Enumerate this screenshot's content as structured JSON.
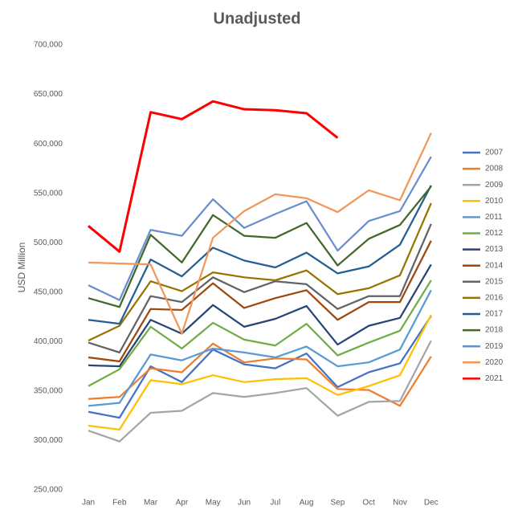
{
  "chart_data": {
    "type": "line",
    "title": "Unadjusted",
    "y_label": "USD Million",
    "categories": [
      "Jan",
      "Feb",
      "Mar",
      "Apr",
      "May",
      "Jun",
      "Jul",
      "Aug",
      "Sep",
      "Oct",
      "Nov",
      "Dec"
    ],
    "ylim": [
      250000,
      700000
    ],
    "yticks": [
      {
        "value": 250000,
        "label": "250,000"
      },
      {
        "value": 300000,
        "label": "300,000"
      },
      {
        "value": 350000,
        "label": "350,000"
      },
      {
        "value": 400000,
        "label": "400,000"
      },
      {
        "value": 450000,
        "label": "450,000"
      },
      {
        "value": 500000,
        "label": "500,000"
      },
      {
        "value": 550000,
        "label": "550,000"
      },
      {
        "value": 600000,
        "label": "600,000"
      },
      {
        "value": 650000,
        "label": "650,000"
      },
      {
        "value": 700000,
        "label": "700,000"
      }
    ],
    "grid": false,
    "legend": "right",
    "series": [
      {
        "name": "2007",
        "color": "#4472c4",
        "values": [
          329000,
          323000,
          375000,
          359000,
          392000,
          377000,
          373000,
          388000,
          354000,
          369000,
          378000,
          426000
        ]
      },
      {
        "name": "2008",
        "color": "#ed7d31",
        "values": [
          342000,
          344000,
          373000,
          369000,
          398000,
          379000,
          383000,
          382000,
          352000,
          351000,
          335000,
          385000
        ]
      },
      {
        "name": "2009",
        "color": "#a5a5a5",
        "values": [
          310000,
          299000,
          328000,
          330000,
          348000,
          344000,
          348000,
          353000,
          325000,
          339000,
          340000,
          401000
        ]
      },
      {
        "name": "2010",
        "color": "#ffc000",
        "values": [
          315000,
          311000,
          361000,
          357000,
          366000,
          359000,
          362000,
          363000,
          346000,
          355000,
          366000,
          427000
        ]
      },
      {
        "name": "2011",
        "color": "#5b9bd5",
        "values": [
          335000,
          338000,
          387000,
          381000,
          393000,
          389000,
          384000,
          395000,
          375000,
          379000,
          392000,
          452000
        ]
      },
      {
        "name": "2012",
        "color": "#70ad47",
        "values": [
          355000,
          372000,
          415000,
          393000,
          419000,
          402000,
          396000,
          418000,
          386000,
          399000,
          411000,
          462000
        ]
      },
      {
        "name": "2013",
        "color": "#264478",
        "values": [
          376000,
          375000,
          422000,
          408000,
          437000,
          415000,
          423000,
          436000,
          397000,
          416000,
          424000,
          478000
        ]
      },
      {
        "name": "2014",
        "color": "#9e480e",
        "values": [
          384000,
          380000,
          433000,
          432000,
          459000,
          434000,
          444000,
          452000,
          422000,
          440000,
          440000,
          502000
        ]
      },
      {
        "name": "2015",
        "color": "#636363",
        "values": [
          399000,
          389000,
          446000,
          440000,
          465000,
          450000,
          461000,
          458000,
          433000,
          446000,
          446000,
          519000
        ]
      },
      {
        "name": "2016",
        "color": "#997300",
        "values": [
          401000,
          416000,
          461000,
          451000,
          470000,
          465000,
          462000,
          472000,
          448000,
          454000,
          467000,
          540000
        ]
      },
      {
        "name": "2017",
        "color": "#255e91",
        "values": [
          422000,
          418000,
          483000,
          466000,
          495000,
          482000,
          475000,
          490000,
          469000,
          476000,
          498000,
          558000
        ]
      },
      {
        "name": "2018",
        "color": "#43682b",
        "values": [
          444000,
          435000,
          508000,
          480000,
          528000,
          507000,
          505000,
          520000,
          477000,
          504000,
          518000,
          557000
        ]
      },
      {
        "name": "2019",
        "color": "#698ed0",
        "values": [
          457000,
          442000,
          513000,
          507000,
          544000,
          515000,
          529000,
          542000,
          492000,
          522000,
          532000,
          587000
        ]
      },
      {
        "name": "2020",
        "color": "#f1975a",
        "values": [
          480000,
          479000,
          478000,
          408000,
          505000,
          532000,
          549000,
          545000,
          531000,
          553000,
          543000,
          611000
        ]
      },
      {
        "name": "2021",
        "color": "#ff0000",
        "values": [
          517000,
          491000,
          632000,
          625000,
          643000,
          635000,
          634000,
          631000,
          606000,
          null,
          null,
          null
        ]
      }
    ]
  }
}
